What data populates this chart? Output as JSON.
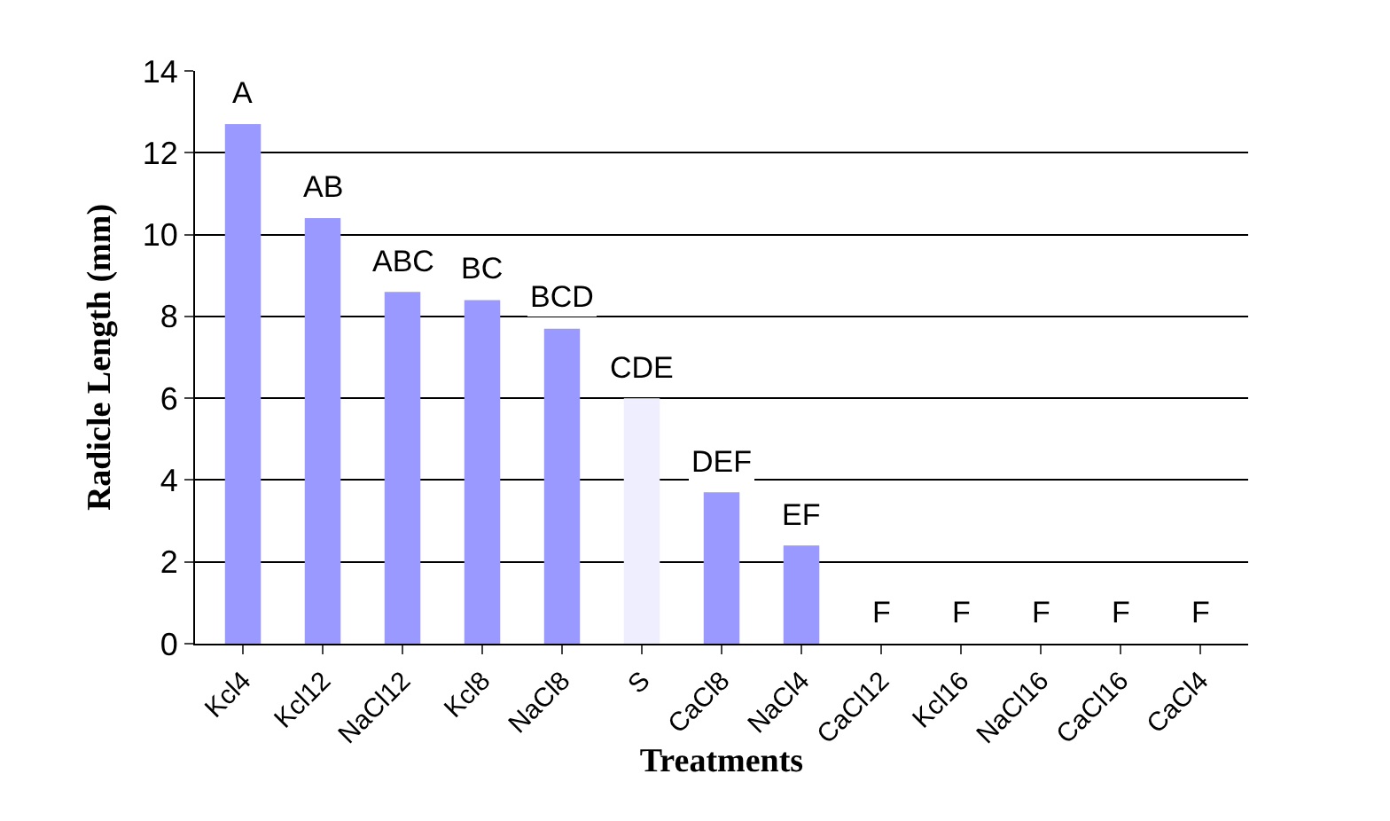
{
  "chart_data": {
    "type": "bar",
    "xlabel": "Treatments",
    "ylabel": "Radicle Length (mm)",
    "categories": [
      "Kcl4",
      "Kcl12",
      "NaCl12",
      "Kcl8",
      "NaCl8",
      "S",
      "CaCl8",
      "NaCl4",
      "CaCl12",
      "Kcl16",
      "NaCl16",
      "CaCl16",
      "CaCl4"
    ],
    "values": [
      12.7,
      10.4,
      8.6,
      8.4,
      7.7,
      6.0,
      3.7,
      2.4,
      0,
      0,
      0,
      0,
      0
    ],
    "colors": [
      "#9999ff",
      "#9999ff",
      "#9999ff",
      "#9999ff",
      "#9999ff",
      "#eeeeff",
      "#9999ff",
      "#9999ff",
      "#9999ff",
      "#9999ff",
      "#9999ff",
      "#9999ff",
      "#9999ff"
    ],
    "value_labels": [
      "A",
      "AB",
      "ABC",
      "BC",
      "BCD",
      "CDE",
      "DEF",
      "EF",
      "F",
      "F",
      "F",
      "F",
      "F"
    ],
    "ylim": [
      0,
      14
    ],
    "yticks": [
      0,
      2,
      4,
      6,
      8,
      10,
      12,
      14
    ],
    "grid": "y",
    "legend": false
  }
}
